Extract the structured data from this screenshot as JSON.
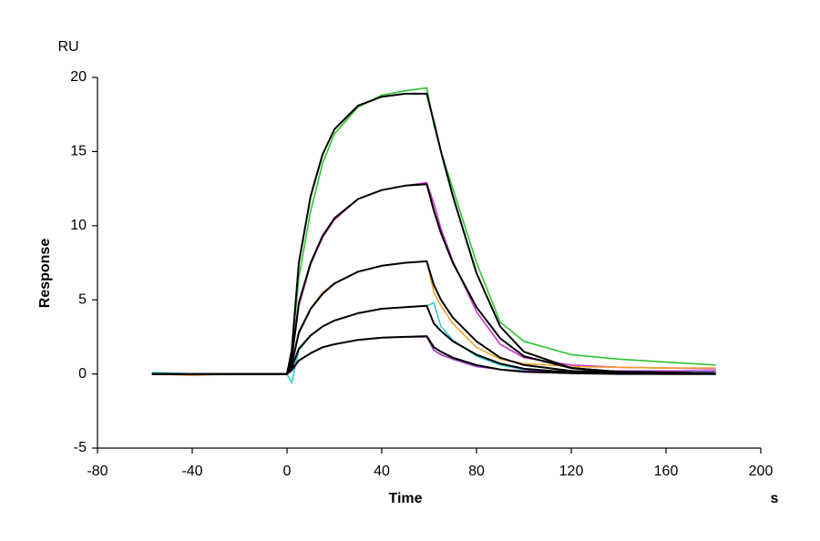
{
  "chart_data": {
    "type": "line",
    "y_unit": "RU",
    "ylabel": "Response",
    "xlabel": "Time",
    "x_unit": "s",
    "x": [
      -57,
      -40,
      -20,
      0,
      2,
      5,
      10,
      15,
      20,
      30,
      40,
      50,
      59,
      62,
      65,
      70,
      80,
      90,
      100,
      120,
      140,
      160,
      181
    ],
    "series": [
      {
        "color": "#2fc42f",
        "values": [
          0.1,
          0,
          0,
          0,
          1.5,
          6.5,
          11,
          14.2,
          16.2,
          18.0,
          18.8,
          19.1,
          19.3,
          16.8,
          15,
          12.5,
          7.5,
          3.5,
          2.2,
          1.3,
          1.0,
          0.8,
          0.6
        ]
      },
      {
        "color": "#cc33cc",
        "values": [
          0,
          0,
          0,
          0,
          1,
          4.6,
          7.4,
          9.2,
          10.4,
          11.8,
          12.4,
          12.7,
          12.9,
          11.5,
          9.8,
          7.6,
          4.2,
          2.0,
          1.1,
          0.6,
          0.45,
          0.4,
          0.35
        ]
      },
      {
        "color": "#f0a030",
        "values": [
          0,
          -0.1,
          0,
          0,
          0.6,
          2.7,
          4.4,
          5.5,
          6.1,
          6.9,
          7.3,
          7.5,
          7.6,
          5.5,
          4.6,
          3.4,
          1.8,
          1.0,
          0.7,
          0.5,
          0.45,
          0.4,
          0.4
        ]
      },
      {
        "color": "#33cccc",
        "values": [
          0.1,
          0,
          0,
          0,
          -0.6,
          1.6,
          2.6,
          3.2,
          3.6,
          4.1,
          4.4,
          4.5,
          4.6,
          4.8,
          3.2,
          2.3,
          1.2,
          0.6,
          0.3,
          0.15,
          0.1,
          0.1,
          0.1
        ]
      },
      {
        "color": "#9933cc",
        "values": [
          0,
          0,
          0,
          0,
          0.2,
          0.9,
          1.4,
          1.8,
          2.0,
          2.3,
          2.45,
          2.5,
          2.5,
          1.6,
          1.3,
          1.0,
          0.5,
          0.3,
          0.2,
          0.2,
          0.2,
          0.2,
          0.2
        ]
      },
      {
        "color": "#000000",
        "values": [
          0,
          0,
          0,
          0,
          1.6,
          7.5,
          12,
          14.8,
          16.5,
          18.1,
          18.7,
          18.9,
          18.9,
          17,
          15,
          12,
          6.8,
          3.2,
          1.5,
          0.4,
          0.15,
          0.1,
          0.05
        ]
      },
      {
        "color": "#000000",
        "values": [
          0,
          0,
          0,
          0,
          1,
          4.8,
          7.5,
          9.3,
          10.5,
          11.8,
          12.4,
          12.7,
          12.8,
          11,
          9.5,
          7.5,
          4.5,
          2.4,
          1.2,
          0.4,
          0.15,
          0.1,
          0.05
        ]
      },
      {
        "color": "#000000",
        "values": [
          0,
          0,
          0,
          0,
          0.6,
          2.8,
          4.4,
          5.4,
          6.1,
          6.9,
          7.3,
          7.5,
          7.6,
          6,
          5,
          3.8,
          2.2,
          1.1,
          0.6,
          0.2,
          0.1,
          0.05,
          0
        ]
      },
      {
        "color": "#000000",
        "values": [
          0,
          0,
          0,
          0,
          0.4,
          1.7,
          2.6,
          3.2,
          3.6,
          4.1,
          4.4,
          4.5,
          4.6,
          3.4,
          2.9,
          2.2,
          1.3,
          0.7,
          0.35,
          0.1,
          0.05,
          0,
          0
        ]
      },
      {
        "color": "#000000",
        "values": [
          0,
          0,
          0,
          0,
          0.3,
          0.9,
          1.4,
          1.8,
          2.0,
          2.3,
          2.45,
          2.5,
          2.55,
          1.8,
          1.5,
          1.1,
          0.6,
          0.3,
          0.15,
          0.05,
          0,
          0,
          0
        ]
      }
    ],
    "xlim": [
      -80,
      200
    ],
    "xticks": [
      -80,
      -40,
      0,
      40,
      80,
      120,
      160,
      200
    ],
    "ylim": [
      -5,
      20
    ],
    "yticks": [
      -5,
      0,
      5,
      10,
      15,
      20
    ]
  }
}
